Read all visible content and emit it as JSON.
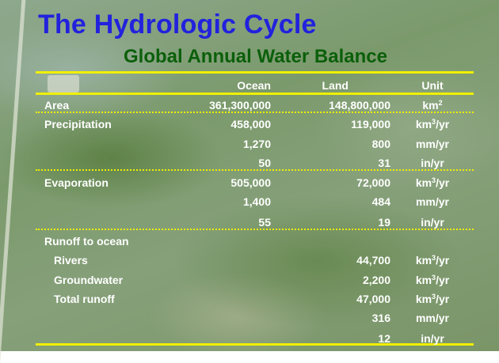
{
  "title": "The Hydrologic Cycle",
  "subtitle": "Global Annual Water Balance",
  "headers": {
    "ocean": "Ocean",
    "land": "Land",
    "unit": "Unit"
  },
  "rows": [
    {
      "label": "Area",
      "indent": false,
      "ocean": "361,300,000",
      "land": "148,800,000",
      "unit_base": "km",
      "unit_sup": "2",
      "unit_rest": ""
    },
    {
      "label": "Precipitation",
      "indent": false,
      "ocean": "458,000",
      "land": "119,000",
      "unit_base": "km",
      "unit_sup": "3",
      "unit_rest": "/yr"
    },
    {
      "label": "",
      "indent": false,
      "ocean": "1,270",
      "land": "800",
      "unit_base": "mm/yr",
      "unit_sup": "",
      "unit_rest": ""
    },
    {
      "label": "",
      "indent": false,
      "ocean": "50",
      "land": "31",
      "unit_base": "in/yr",
      "unit_sup": "",
      "unit_rest": ""
    },
    {
      "label": "Evaporation",
      "indent": false,
      "ocean": "505,000",
      "land": "72,000",
      "unit_base": "km",
      "unit_sup": "3",
      "unit_rest": "/yr"
    },
    {
      "label": "",
      "indent": false,
      "ocean": "1,400",
      "land": "484",
      "unit_base": "mm/yr",
      "unit_sup": "",
      "unit_rest": ""
    },
    {
      "label": "",
      "indent": false,
      "ocean": "55",
      "land": "19",
      "unit_base": "in/yr",
      "unit_sup": "",
      "unit_rest": ""
    },
    {
      "label": "Runoff to ocean",
      "indent": false,
      "ocean": "",
      "land": "",
      "unit_base": "",
      "unit_sup": "",
      "unit_rest": ""
    },
    {
      "label": "Rivers",
      "indent": true,
      "ocean": "",
      "land": "44,700",
      "unit_base": "km",
      "unit_sup": "3",
      "unit_rest": "/yr"
    },
    {
      "label": "Groundwater",
      "indent": true,
      "ocean": "",
      "land": "2,200",
      "unit_base": "km",
      "unit_sup": "3",
      "unit_rest": "/yr"
    },
    {
      "label": "Total runoff",
      "indent": true,
      "ocean": "",
      "land": "47,000",
      "unit_base": "km",
      "unit_sup": "3",
      "unit_rest": "/yr"
    },
    {
      "label": "",
      "indent": false,
      "ocean": "",
      "land": "316",
      "unit_base": "mm/yr",
      "unit_sup": "",
      "unit_rest": ""
    },
    {
      "label": "",
      "indent": false,
      "ocean": "",
      "land": "12",
      "unit_base": "in/yr",
      "unit_sup": "",
      "unit_rest": ""
    }
  ]
}
